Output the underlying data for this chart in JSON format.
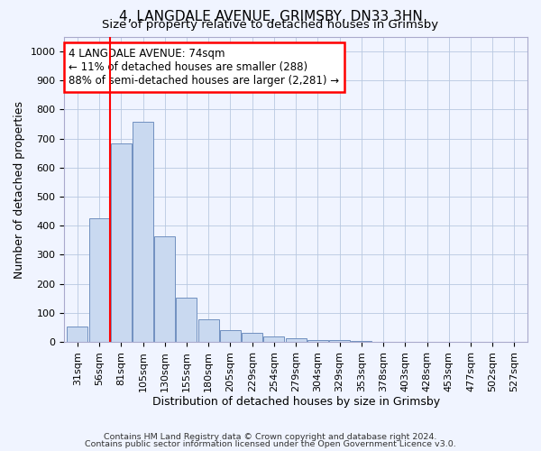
{
  "title1": "4, LANGDALE AVENUE, GRIMSBY, DN33 3HN",
  "title2": "Size of property relative to detached houses in Grimsby",
  "xlabel": "Distribution of detached houses by size in Grimsby",
  "ylabel": "Number of detached properties",
  "categories": [
    "31sqm",
    "56sqm",
    "81sqm",
    "105sqm",
    "130sqm",
    "155sqm",
    "180sqm",
    "205sqm",
    "229sqm",
    "254sqm",
    "279sqm",
    "304sqm",
    "329sqm",
    "353sqm",
    "378sqm",
    "403sqm",
    "428sqm",
    "453sqm",
    "477sqm",
    "502sqm",
    "527sqm"
  ],
  "values": [
    52,
    425,
    685,
    758,
    365,
    153,
    78,
    40,
    32,
    18,
    12,
    5,
    5,
    2,
    1,
    1,
    0,
    0,
    0,
    0,
    0
  ],
  "bar_color": "#c9d9f0",
  "bar_edge_color": "#7090c0",
  "vline_x": 2.0,
  "vline_color": "red",
  "annotation_line1": "4 LANGDALE AVENUE: 74sqm",
  "annotation_line2": "← 11% of detached houses are smaller (288)",
  "annotation_line3": "88% of semi-detached houses are larger (2,281) →",
  "annotation_box_color": "white",
  "annotation_box_edge_color": "red",
  "ylim": [
    0,
    1050
  ],
  "yticks": [
    0,
    100,
    200,
    300,
    400,
    500,
    600,
    700,
    800,
    900,
    1000
  ],
  "footer1": "Contains HM Land Registry data © Crown copyright and database right 2024.",
  "footer2": "Contains public sector information licensed under the Open Government Licence v3.0.",
  "bg_color": "#f0f4ff",
  "plot_bg_color": "#f0f4ff",
  "grid_color": "#b8c8e0",
  "title1_fontsize": 11,
  "title2_fontsize": 9.5,
  "tick_fontsize": 8,
  "label_fontsize": 9,
  "annotation_fontsize": 8.5,
  "footer_fontsize": 6.8
}
